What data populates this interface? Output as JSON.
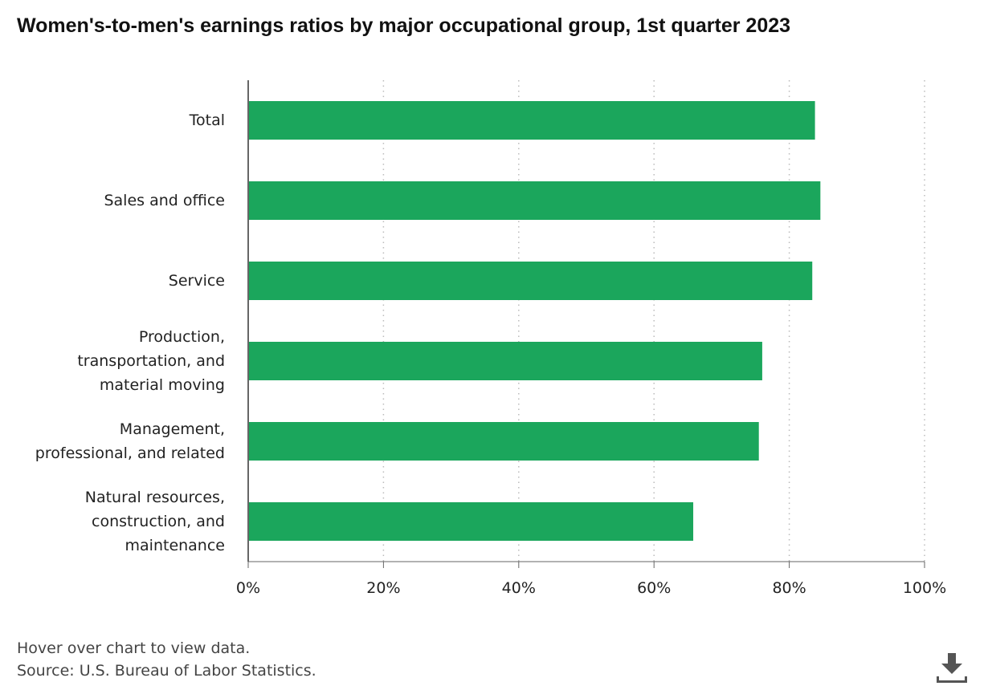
{
  "title": "Women's-to-men's earnings ratios by major occupational group, 1st quarter 2023",
  "footer": {
    "hint": "Hover over chart to view data.",
    "source": "Source: U.S. Bureau of Labor Statistics."
  },
  "icons": {
    "download": "download-icon"
  },
  "colors": {
    "bar": "#1ba65c",
    "axis": "#666666",
    "grid": "#bbbbbb"
  },
  "chart_data": {
    "type": "bar",
    "orientation": "horizontal",
    "title": "Women's-to-men's earnings ratios by major occupational group, 1st quarter 2023",
    "xlabel": "",
    "ylabel": "",
    "categories": [
      [
        "Total"
      ],
      [
        "Sales and office"
      ],
      [
        "Service"
      ],
      [
        "Production,",
        "transportation, and",
        "material moving"
      ],
      [
        "Management,",
        "professional, and related"
      ],
      [
        "Natural resources,",
        "construction, and",
        "maintenance"
      ]
    ],
    "values": [
      83.8,
      84.6,
      83.4,
      76.0,
      75.5,
      65.8
    ],
    "xlim": [
      0,
      100
    ],
    "ticks": [
      {
        "value": 0,
        "label": "0%"
      },
      {
        "value": 20,
        "label": "20%"
      },
      {
        "value": 40,
        "label": "40%"
      },
      {
        "value": 60,
        "label": "60%"
      },
      {
        "value": 80,
        "label": "80%"
      },
      {
        "value": 100,
        "label": "100%"
      }
    ],
    "grid": true,
    "legend": "none"
  }
}
